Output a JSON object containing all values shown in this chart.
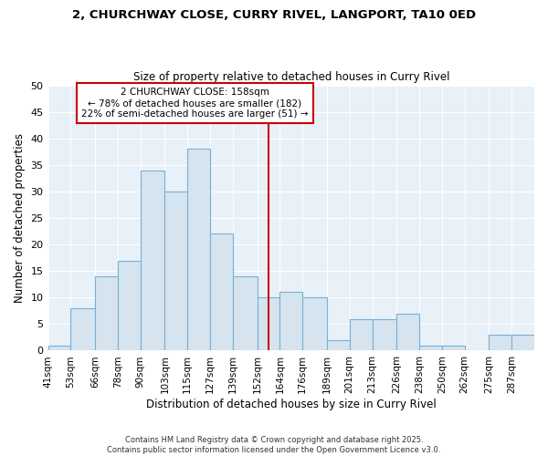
{
  "title_line1": "2, CHURCHWAY CLOSE, CURRY RIVEL, LANGPORT, TA10 0ED",
  "title_line2": "Size of property relative to detached houses in Curry Rivel",
  "xlabel": "Distribution of detached houses by size in Curry Rivel",
  "ylabel": "Number of detached properties",
  "categories": [
    "41sqm",
    "53sqm",
    "66sqm",
    "78sqm",
    "90sqm",
    "103sqm",
    "115sqm",
    "127sqm",
    "139sqm",
    "152sqm",
    "164sqm",
    "176sqm",
    "189sqm",
    "201sqm",
    "213sqm",
    "226sqm",
    "238sqm",
    "250sqm",
    "262sqm",
    "275sqm",
    "287sqm"
  ],
  "values": [
    1,
    8,
    14,
    17,
    34,
    30,
    38,
    22,
    14,
    10,
    11,
    10,
    2,
    6,
    6,
    7,
    1,
    1,
    0,
    3,
    3
  ],
  "bar_color": "#d6e4f0",
  "bar_edge_color": "#7ab0d4",
  "ref_line_x": 158,
  "bin_edges": [
    41,
    53,
    66,
    78,
    90,
    103,
    115,
    127,
    139,
    152,
    164,
    176,
    189,
    201,
    213,
    226,
    238,
    250,
    262,
    275,
    287,
    299
  ],
  "annotation_text": "2 CHURCHWAY CLOSE: 158sqm\n← 78% of detached houses are smaller (182)\n22% of semi-detached houses are larger (51) →",
  "annotation_box_color": "#ffffff",
  "annotation_box_edgecolor": "#cc0000",
  "red_line_color": "#cc0000",
  "ylim": [
    0,
    50
  ],
  "yticks": [
    0,
    5,
    10,
    15,
    20,
    25,
    30,
    35,
    40,
    45,
    50
  ],
  "background_color": "#ffffff",
  "plot_bg_color": "#e8f0f8",
  "footer_text": "Contains HM Land Registry data © Crown copyright and database right 2025.\nContains public sector information licensed under the Open Government Licence v3.0.",
  "grid_color": "#ffffff"
}
